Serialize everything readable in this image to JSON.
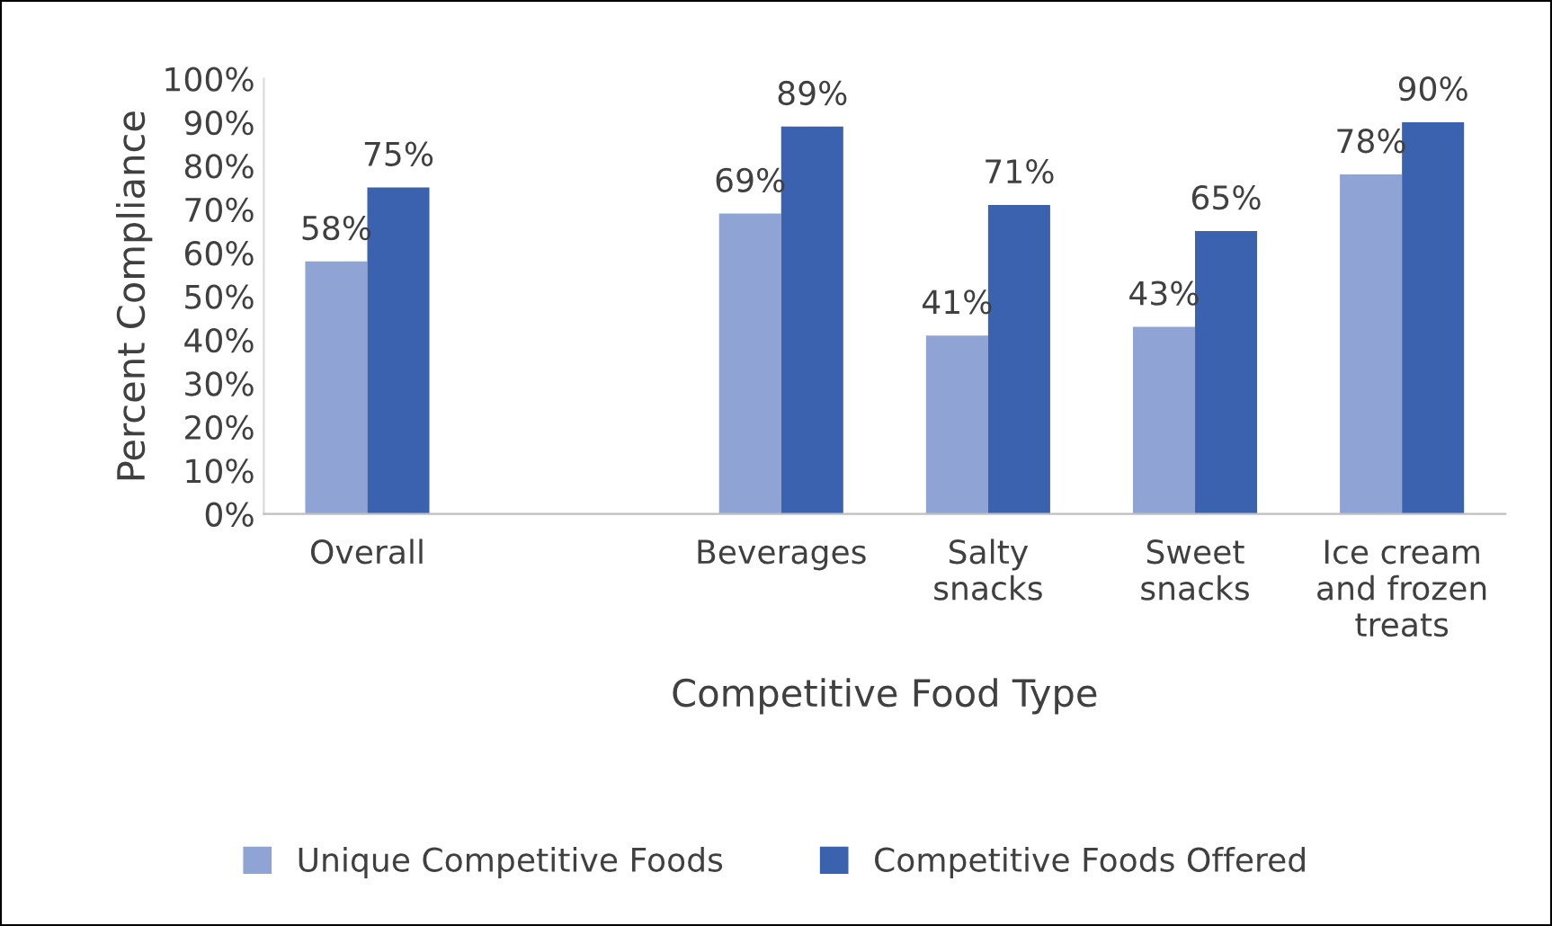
{
  "chart_data": {
    "type": "bar",
    "xlabel": "Competitive Food Type",
    "ylabel": "Percent Compliance",
    "categories": [
      "Overall",
      null,
      "Beverages",
      "Salty\nsnacks",
      "Sweet\nsnacks",
      "Ice cream\nand frozen\ntreats"
    ],
    "series": [
      {
        "name": "Unique Competitive Foods",
        "color": "#8fa3d5",
        "values": [
          58,
          null,
          69,
          41,
          43,
          78
        ],
        "value_labels": [
          "58%",
          null,
          "69%",
          "41%",
          "43%",
          "78%"
        ]
      },
      {
        "name": "Competitive Foods Offered",
        "color": "#3a62ae",
        "values": [
          75,
          null,
          89,
          71,
          65,
          90
        ],
        "value_labels": [
          "75%",
          null,
          "89%",
          "71%",
          "65%",
          "90%"
        ]
      }
    ],
    "ylim": [
      0,
      100
    ],
    "yticks": [
      {
        "value": 0,
        "label": "0%"
      },
      {
        "value": 10,
        "label": "10%"
      },
      {
        "value": 20,
        "label": "20%"
      },
      {
        "value": 30,
        "label": "30%"
      },
      {
        "value": 40,
        "label": "40%"
      },
      {
        "value": 50,
        "label": "50%"
      },
      {
        "value": 60,
        "label": "60%"
      },
      {
        "value": 70,
        "label": "70%"
      },
      {
        "value": 80,
        "label": "80%"
      },
      {
        "value": 90,
        "label": "90%"
      },
      {
        "value": 100,
        "label": "100%"
      }
    ],
    "legend": "bottom"
  }
}
